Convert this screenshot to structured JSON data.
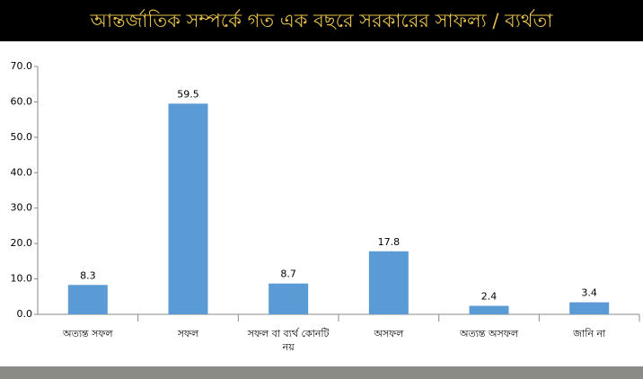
{
  "chart_data": {
    "type": "bar",
    "title": "আন্তর্জাতিক সম্পর্কে গত এক বছরে সরকারের সাফল্য / ব্যর্থতা",
    "categories": [
      "অত্যন্ত সফল",
      "সফল",
      "সফল বা ব্যর্থ কোনটি নয়",
      "অসফল",
      "অত্যন্ত অসফল",
      "জানি না"
    ],
    "values": [
      8.3,
      59.5,
      8.7,
      17.8,
      2.4,
      3.4
    ],
    "color": "#5b9bd5",
    "ylim": [
      0,
      70
    ],
    "yticks": [
      {
        "value": 0,
        "label": "0.0"
      },
      {
        "value": 10,
        "label": "10.0"
      },
      {
        "value": 20,
        "label": "20.0"
      },
      {
        "value": 30,
        "label": "30.0"
      },
      {
        "value": 40,
        "label": "40.0"
      },
      {
        "value": 50,
        "label": "50.0"
      },
      {
        "value": 60,
        "label": "60.0"
      },
      {
        "value": 70,
        "label": "70.0"
      }
    ],
    "grid": false
  }
}
